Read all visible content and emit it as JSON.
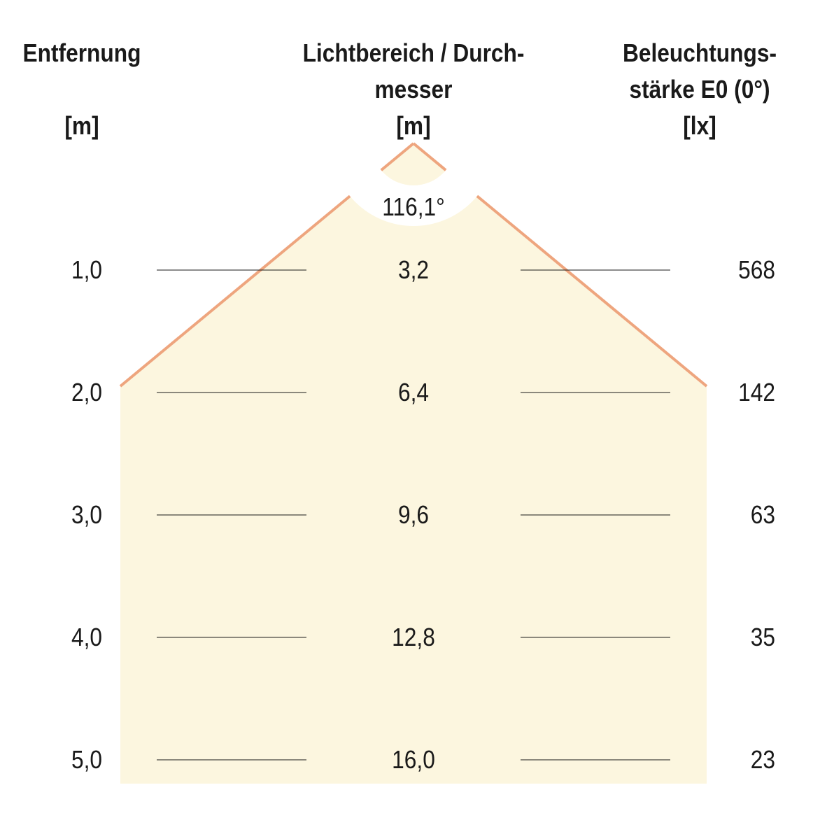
{
  "headers": {
    "distance": {
      "title": "Entfernung",
      "unit": "[m]"
    },
    "diameter": {
      "title_line1": "Lichtbereich / Durch-",
      "title_line2": "messer",
      "unit": "[m]"
    },
    "illuminance": {
      "title_line1": "Beleuchtungs-",
      "title_line2": "stärke E0 (0°)",
      "unit": "[lx]"
    }
  },
  "beam_angle": "116,1°",
  "rows": [
    {
      "distance": "1,0",
      "diameter": "3,2",
      "lux": "568"
    },
    {
      "distance": "2,0",
      "diameter": "6,4",
      "lux": "142"
    },
    {
      "distance": "3,0",
      "diameter": "9,6",
      "lux": "63"
    },
    {
      "distance": "4,0",
      "diameter": "12,8",
      "lux": "35"
    },
    {
      "distance": "5,0",
      "diameter": "16,0",
      "lux": "23"
    }
  ],
  "colors": {
    "beam_fill": "#fcf6df",
    "beam_edge": "#eea57e",
    "text": "#1a1a1a"
  }
}
